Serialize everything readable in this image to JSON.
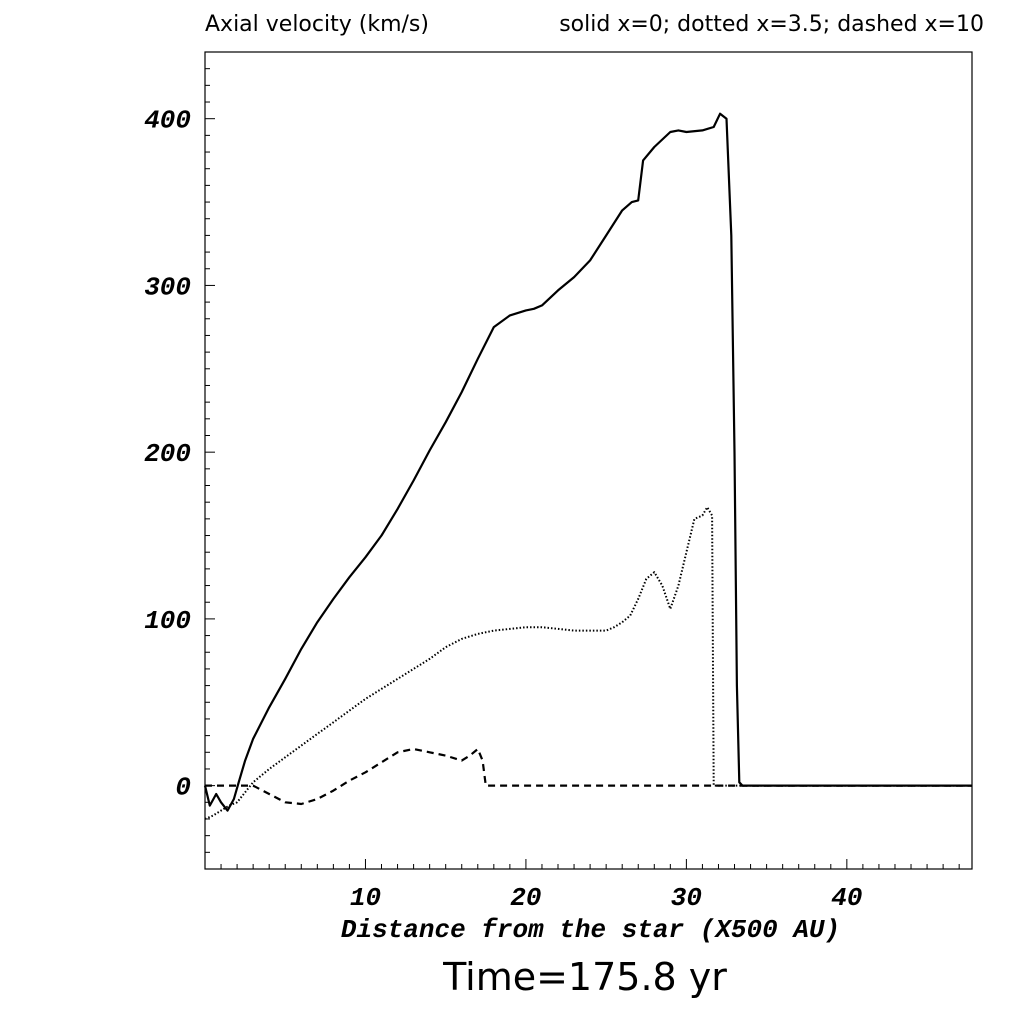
{
  "chart_data": {
    "type": "line",
    "title": "Axial velocity (km/s)",
    "legend_text": "solid x=0; dotted x=3.5; dashed x=10",
    "xlabel": "Distance from the star (X500 AU)",
    "ylabel": "",
    "caption": "Time=175.8 yr",
    "xlim": [
      0,
      47.8
    ],
    "ylim": [
      -50,
      440
    ],
    "xticks": [
      10,
      20,
      30,
      40
    ],
    "yticks": [
      0,
      100,
      200,
      300,
      400
    ],
    "grid": false,
    "series": [
      {
        "name": "x=0",
        "style": "solid",
        "x": [
          0,
          0.3,
          0.7,
          1.0,
          1.4,
          1.8,
          2.1,
          2.5,
          3,
          4,
          5,
          6,
          7,
          8,
          9,
          10,
          11,
          12,
          13,
          14,
          15,
          16,
          17,
          18,
          19,
          20,
          20.5,
          21,
          22,
          23,
          24,
          25,
          26,
          26.6,
          27.0,
          27.3,
          28,
          29,
          29.5,
          30,
          31,
          31.7,
          32.1,
          32.5,
          32.8,
          33.0,
          33.15,
          33.3,
          33.5,
          34,
          47.8
        ],
        "y": [
          0,
          -12,
          -5,
          -10,
          -15,
          -8,
          2,
          15,
          28,
          47,
          64,
          82,
          98,
          112,
          125,
          137,
          150,
          166,
          183,
          201,
          218,
          236,
          256,
          275,
          282,
          285,
          286,
          288,
          297,
          305,
          315,
          330,
          345,
          350,
          351,
          375,
          383,
          392,
          393,
          392,
          393,
          395,
          403,
          400,
          330,
          200,
          60,
          2,
          0,
          0,
          0
        ]
      },
      {
        "name": "x=3.5",
        "style": "dotted",
        "x": [
          0,
          0.5,
          1,
          1.5,
          2,
          3,
          4,
          5,
          6,
          7,
          8,
          9,
          10,
          11,
          12,
          13,
          14,
          15,
          16,
          17,
          18,
          19,
          20,
          21,
          22,
          23,
          24,
          25,
          25.5,
          26,
          26.5,
          27,
          27.5,
          28,
          28.5,
          29,
          29.5,
          30,
          30.5,
          31,
          31.3,
          31.6,
          31.7,
          32,
          47.8
        ],
        "y": [
          -20,
          -18,
          -15,
          -12,
          -10,
          2,
          10,
          17,
          24,
          31,
          38,
          45,
          52,
          58,
          64,
          70,
          76,
          83,
          88,
          91,
          93,
          94,
          95,
          95,
          94,
          93,
          93,
          93,
          95,
          98,
          102,
          112,
          124,
          128,
          120,
          106,
          120,
          140,
          160,
          162,
          167,
          162,
          0,
          0,
          0
        ]
      },
      {
        "name": "x=10",
        "style": "dashed",
        "x": [
          0,
          0.5,
          1,
          1.5,
          2,
          3,
          4,
          5,
          6,
          7,
          8,
          9,
          10,
          11,
          12,
          13,
          14,
          15,
          16,
          16.5,
          17,
          17.3,
          17.5,
          18,
          47.8
        ],
        "y": [
          0,
          0,
          0,
          0,
          0,
          0,
          -5,
          -10,
          -11,
          -8,
          -3,
          3,
          8,
          14,
          20,
          22,
          20,
          18,
          15,
          18,
          22,
          15,
          0,
          0,
          0
        ]
      }
    ]
  }
}
